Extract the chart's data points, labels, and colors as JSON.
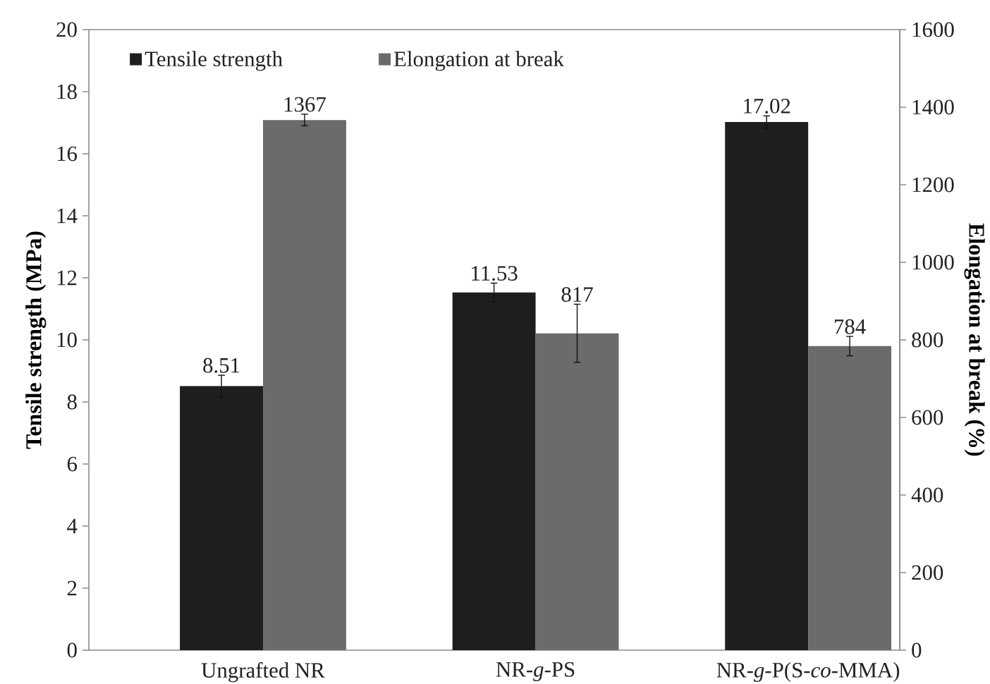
{
  "chart_data": {
    "type": "bar",
    "categories": [
      "Ungrafted NR",
      "NR-*g*-PS",
      "NR-*g*-P(S-*co*-MMA)"
    ],
    "ylabel": "Tensile strength (MPa)",
    "y2label": "Elongation at break (%)",
    "ylim": [
      0,
      20
    ],
    "yticks": [
      0,
      2,
      4,
      6,
      8,
      10,
      12,
      14,
      16,
      18,
      20
    ],
    "y2lim": [
      0,
      1600
    ],
    "y2ticks": [
      0,
      200,
      400,
      600,
      800,
      1000,
      1200,
      1400,
      1600
    ],
    "series": [
      {
        "name": "Tensile strength",
        "color": "#1e1e1e",
        "values": [
          8.51,
          11.53,
          17.02
        ],
        "errors": [
          0.35,
          0.3,
          0.2
        ]
      },
      {
        "name": "Elongation at break",
        "color": "#6b6b6b",
        "values": [
          1367,
          817,
          784
        ],
        "errors": [
          15,
          75,
          25
        ],
        "axis": "y2"
      }
    ],
    "data_labels": true,
    "legend": "top left"
  }
}
